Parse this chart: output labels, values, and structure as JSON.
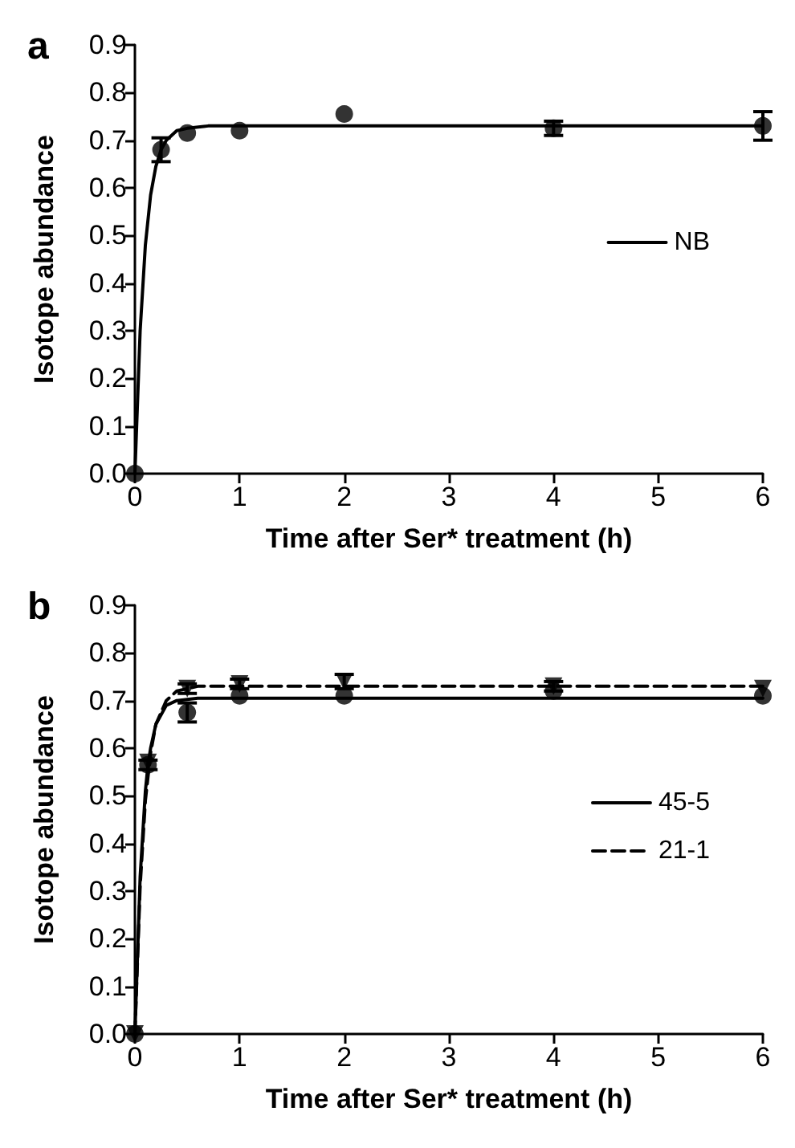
{
  "chart_data": [
    {
      "type": "scatter",
      "title": "a",
      "xlabel": "Time after Ser* treatment (h)",
      "ylabel": "Isotope abundance",
      "xlim": [
        0,
        6
      ],
      "xticks": [
        0,
        1,
        2,
        3,
        4,
        5,
        6
      ],
      "ylim": [
        0,
        0.9
      ],
      "yticks": [
        {
          "value": 0,
          "label": "0.0"
        },
        0.1,
        0.2,
        0.3,
        0.4,
        0.5,
        0.6,
        0.7,
        0.8,
        0.9
      ],
      "grid": false,
      "legend": "right",
      "series": [
        {
          "type": "line",
          "name": "NB",
          "color": "#000000",
          "marker": "none",
          "line_style": "solid",
          "x": [
            0,
            0.05,
            0.1,
            0.15,
            0.2,
            0.25,
            0.3,
            0.4,
            0.5,
            0.7,
            1,
            6
          ],
          "values": [
            0,
            0.3,
            0.48,
            0.585,
            0.645,
            0.68,
            0.7,
            0.72,
            0.725,
            0.73,
            0.73,
            0.73
          ]
        },
        {
          "type": "scatter",
          "color": "#000000",
          "marker": "circle",
          "x": [
            0,
            0.25,
            0.5,
            1,
            2,
            4,
            6
          ],
          "values": [
            0,
            0.68,
            0.715,
            0.72,
            0.755,
            0.725,
            0.73
          ],
          "errors": [
            null,
            0.025,
            null,
            null,
            null,
            0.015,
            0.03
          ]
        }
      ]
    },
    {
      "type": "scatter",
      "title": "b",
      "xlabel": "Time after Ser* treatment (h)",
      "ylabel": "Isotope abundance",
      "xlim": [
        0,
        6
      ],
      "xticks": [
        0,
        1,
        2,
        3,
        4,
        5,
        6
      ],
      "ylim": [
        0,
        0.9
      ],
      "yticks": [
        {
          "value": 0,
          "label": "0.0"
        },
        0.1,
        0.2,
        0.3,
        0.4,
        0.5,
        0.6,
        0.7,
        0.8,
        0.9
      ],
      "grid": false,
      "legend": "right",
      "series": [
        {
          "type": "line",
          "name": "45-5",
          "color": "#000000",
          "marker": "none",
          "line_style": "solid",
          "x": [
            0,
            0.05,
            0.1,
            0.125,
            0.15,
            0.2,
            0.3,
            0.4,
            0.6,
            1,
            6
          ],
          "values": [
            0,
            0.33,
            0.51,
            0.565,
            0.6,
            0.65,
            0.69,
            0.7,
            0.705,
            0.705,
            0.705
          ]
        },
        {
          "type": "line",
          "name": "21-1",
          "color": "#000000",
          "marker": "none",
          "line_style": "dashed",
          "x": [
            0,
            0.05,
            0.1,
            0.15,
            0.2,
            0.3,
            0.4,
            0.6,
            1,
            6
          ],
          "values": [
            0,
            0.31,
            0.49,
            0.59,
            0.65,
            0.7,
            0.72,
            0.73,
            0.73,
            0.73
          ]
        },
        {
          "type": "scatter",
          "color": "#000000",
          "marker": "circle",
          "x": [
            0,
            0.125,
            0.5,
            1,
            2,
            4,
            6
          ],
          "values": [
            0,
            0.565,
            0.675,
            0.71,
            0.71,
            0.72,
            0.71
          ],
          "errors": [
            null,
            0.01,
            0.02,
            null,
            null,
            null,
            null
          ]
        },
        {
          "type": "scatter",
          "color": "#000000",
          "marker": "triangle",
          "x": [
            0,
            0.125,
            0.5,
            1,
            2,
            4,
            6
          ],
          "values": [
            0,
            0.57,
            0.725,
            0.735,
            0.74,
            0.73,
            0.725
          ],
          "errors": [
            null,
            null,
            0.01,
            0.01,
            0.015,
            0.01,
            null
          ]
        }
      ]
    }
  ]
}
